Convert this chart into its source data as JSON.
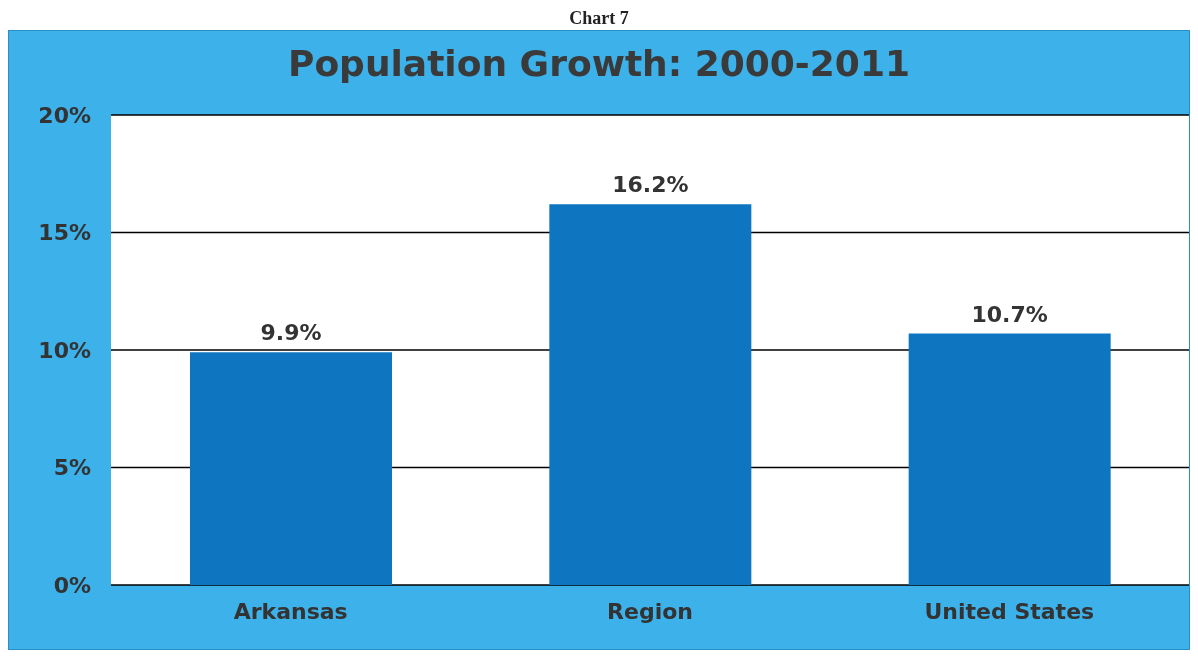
{
  "chart_data": {
    "type": "bar",
    "title": "Population Growth: 2000-2011",
    "annotations": [
      "Chart 7"
    ],
    "categories": [
      "Arkansas",
      "Region",
      "United States"
    ],
    "values": [
      9.9,
      16.2,
      10.7
    ],
    "color": "#0e76c0",
    "value_labels": [
      "9.9%",
      "16.2%",
      "10.7%"
    ],
    "ylim": [
      0,
      20
    ],
    "yticks": [
      {
        "value": 0,
        "label": "0%"
      },
      {
        "value": 5,
        "label": "5%"
      },
      {
        "value": 10,
        "label": "10%"
      },
      {
        "value": 15,
        "label": "15%"
      },
      {
        "value": 20,
        "label": "20%"
      }
    ],
    "grid": "y"
  }
}
